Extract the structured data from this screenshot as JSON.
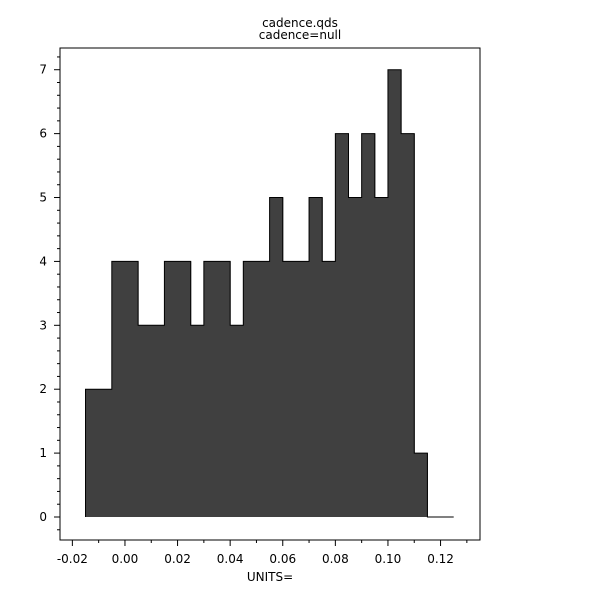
{
  "chart_data": {
    "type": "bar",
    "title": "cadence.qds",
    "subtitle": "cadence=null",
    "xlabel": "UNITS=",
    "ylabel": "",
    "bin_edges": [
      -0.015,
      -0.01,
      -0.005,
      0,
      0.005,
      0.01,
      0.015,
      0.02,
      0.025,
      0.03,
      0.035,
      0.04,
      0.045,
      0.05,
      0.055,
      0.06,
      0.065,
      0.07,
      0.075,
      0.08,
      0.085,
      0.09,
      0.095,
      0.1,
      0.105,
      0.11,
      0.115,
      0.12,
      0.125
    ],
    "values": [
      2,
      2,
      4,
      4,
      3,
      3,
      4,
      4,
      3,
      4,
      4,
      3,
      4,
      4,
      5,
      4,
      4,
      5,
      4,
      6,
      5,
      6,
      5,
      7,
      6,
      1,
      0,
      0
    ],
    "xlim": [
      -0.0247,
      0.135
    ],
    "ylim": [
      -0.36,
      7.34
    ],
    "xticks": [
      "-0.02",
      "0.00",
      "0.02",
      "0.04",
      "0.06",
      "0.08",
      "0.10",
      "0.12"
    ],
    "yticks": [
      "0",
      "1",
      "2",
      "3",
      "4",
      "5",
      "6",
      "7"
    ],
    "grid": false,
    "fill_color": "#404040"
  }
}
